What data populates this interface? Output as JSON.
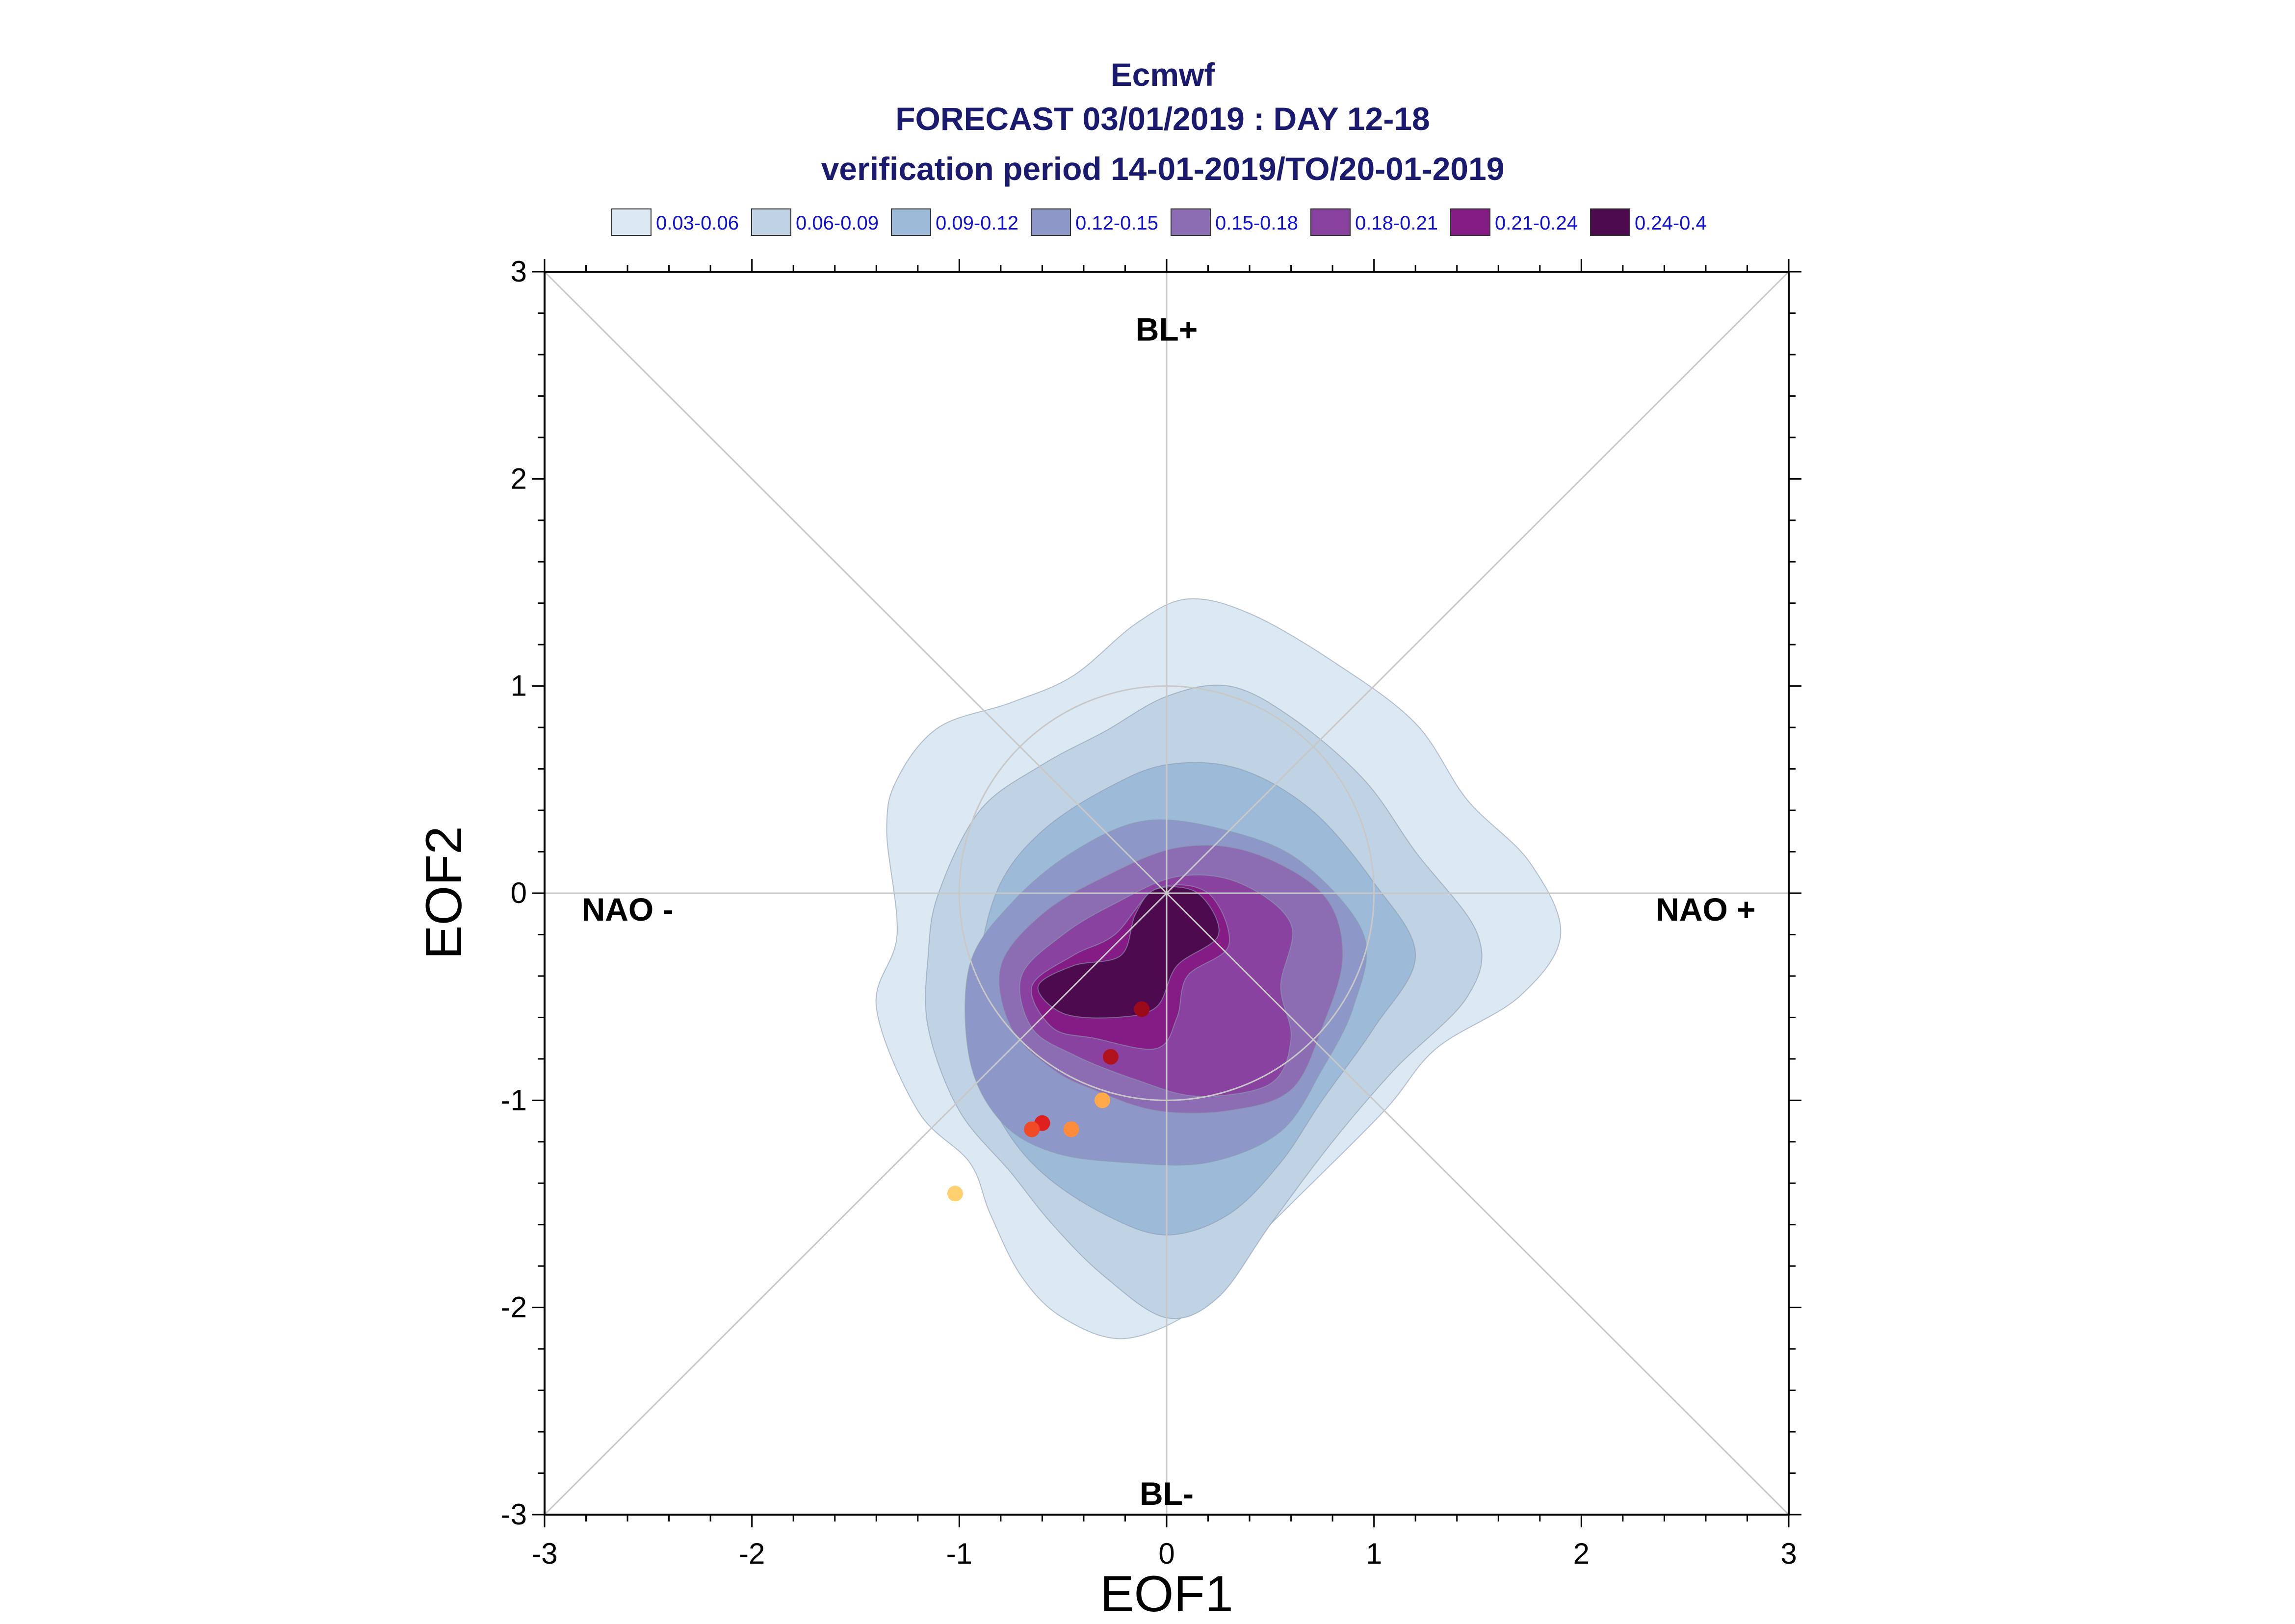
{
  "chart_data": {
    "type": "scatter",
    "title": "Ecmwf",
    "subtitle": "FORECAST 03/01/2019 : DAY 12-18",
    "subtitle2": "verification period 14-01-2019/TO/20-01-2019",
    "xlabel": "EOF1",
    "ylabel": "EOF2",
    "xlim": [
      -3,
      3
    ],
    "ylim": [
      -3,
      3
    ],
    "xticks": [
      -3,
      -2,
      -1,
      0,
      1,
      2,
      3
    ],
    "yticks": [
      -3,
      -2,
      -1,
      0,
      1,
      2,
      3
    ],
    "grid": false,
    "legend_placement": "top",
    "regime_labels": [
      {
        "text": "BL+",
        "x": 0,
        "y": 2.72
      },
      {
        "text": "BL-",
        "x": 0,
        "y": -2.9
      },
      {
        "text": "NAO -",
        "x": -2.6,
        "y": -0.08
      },
      {
        "text": "NAO +",
        "x": 2.6,
        "y": -0.08
      }
    ],
    "density_legend": [
      {
        "label": "0.03-0.06",
        "color": "#dde9f2"
      },
      {
        "label": "0.06-0.09",
        "color": "#bfd3e4"
      },
      {
        "label": "0.09-0.12",
        "color": "#9dbbd9"
      },
      {
        "label": "0.12-0.15",
        "color": "#8d97c8"
      },
      {
        "label": "0.15-0.18",
        "color": "#8c6db4"
      },
      {
        "label": "0.18-0.21",
        "color": "#8a42a0"
      },
      {
        "label": "0.21-0.24",
        "color": "#851b85"
      },
      {
        "label": "0.24-0.4",
        "color": "#4d0a4e"
      }
    ],
    "density_contours": [
      {
        "level": 0.03,
        "color": "#dde9f2",
        "points": [
          [
            -1.4,
            -0.55
          ],
          [
            -1.3,
            -0.2
          ],
          [
            -1.35,
            0.3
          ],
          [
            -1.3,
            0.55
          ],
          [
            -1.1,
            0.8
          ],
          [
            -0.75,
            0.92
          ],
          [
            -0.45,
            1.05
          ],
          [
            -0.15,
            1.3
          ],
          [
            0.1,
            1.42
          ],
          [
            0.4,
            1.35
          ],
          [
            0.8,
            1.12
          ],
          [
            1.2,
            0.82
          ],
          [
            1.45,
            0.45
          ],
          [
            1.75,
            0.15
          ],
          [
            1.9,
            -0.2
          ],
          [
            1.7,
            -0.5
          ],
          [
            1.3,
            -0.75
          ],
          [
            1.05,
            -1.05
          ],
          [
            0.6,
            -1.5
          ],
          [
            0.35,
            -1.75
          ],
          [
            0.15,
            -2.0
          ],
          [
            -0.2,
            -2.15
          ],
          [
            -0.5,
            -2.05
          ],
          [
            -0.7,
            -1.85
          ],
          [
            -0.85,
            -1.55
          ],
          [
            -0.95,
            -1.3
          ],
          [
            -1.2,
            -1.05
          ]
        ]
      },
      {
        "level": 0.06,
        "color": "#bfd3e4",
        "points": [
          [
            -1.15,
            -0.3
          ],
          [
            -1.1,
            0.0
          ],
          [
            -0.9,
            0.4
          ],
          [
            -0.6,
            0.62
          ],
          [
            -0.3,
            0.78
          ],
          [
            0.0,
            0.95
          ],
          [
            0.3,
            1.0
          ],
          [
            0.6,
            0.85
          ],
          [
            0.95,
            0.55
          ],
          [
            1.2,
            0.2
          ],
          [
            1.5,
            -0.2
          ],
          [
            1.45,
            -0.5
          ],
          [
            1.1,
            -0.85
          ],
          [
            0.8,
            -1.2
          ],
          [
            0.5,
            -1.6
          ],
          [
            0.25,
            -1.95
          ],
          [
            0.0,
            -2.05
          ],
          [
            -0.3,
            -1.85
          ],
          [
            -0.55,
            -1.6
          ],
          [
            -0.75,
            -1.35
          ],
          [
            -1.0,
            -1.05
          ],
          [
            -1.15,
            -0.65
          ]
        ]
      },
      {
        "level": 0.09,
        "color": "#9dbbd9",
        "points": [
          [
            -0.9,
            -0.3
          ],
          [
            -0.8,
            0.05
          ],
          [
            -0.6,
            0.3
          ],
          [
            -0.3,
            0.5
          ],
          [
            0.0,
            0.62
          ],
          [
            0.35,
            0.6
          ],
          [
            0.7,
            0.4
          ],
          [
            1.0,
            0.05
          ],
          [
            1.2,
            -0.3
          ],
          [
            1.0,
            -0.65
          ],
          [
            0.75,
            -1.0
          ],
          [
            0.55,
            -1.3
          ],
          [
            0.3,
            -1.55
          ],
          [
            0.0,
            -1.65
          ],
          [
            -0.3,
            -1.55
          ],
          [
            -0.6,
            -1.35
          ],
          [
            -0.8,
            -1.1
          ],
          [
            -0.95,
            -0.75
          ]
        ]
      },
      {
        "level": 0.12,
        "color": "#8d97c8",
        "points": [
          [
            -0.95,
            -0.35
          ],
          [
            -0.75,
            -0.05
          ],
          [
            -0.45,
            0.2
          ],
          [
            -0.1,
            0.35
          ],
          [
            0.3,
            0.3
          ],
          [
            0.65,
            0.15
          ],
          [
            0.95,
            -0.2
          ],
          [
            0.9,
            -0.55
          ],
          [
            0.75,
            -0.85
          ],
          [
            0.55,
            -1.15
          ],
          [
            0.2,
            -1.3
          ],
          [
            -0.2,
            -1.3
          ],
          [
            -0.55,
            -1.25
          ],
          [
            -0.8,
            -1.1
          ],
          [
            -0.95,
            -0.8
          ]
        ]
      },
      {
        "level": 0.15,
        "color": "#8c6db4",
        "points": [
          [
            -0.8,
            -0.35
          ],
          [
            -0.6,
            -0.1
          ],
          [
            -0.3,
            0.08
          ],
          [
            0.05,
            0.22
          ],
          [
            0.4,
            0.2
          ],
          [
            0.75,
            0.0
          ],
          [
            0.85,
            -0.3
          ],
          [
            0.75,
            -0.65
          ],
          [
            0.6,
            -0.95
          ],
          [
            0.3,
            -1.05
          ],
          [
            -0.05,
            -1.05
          ],
          [
            -0.35,
            -0.95
          ],
          [
            -0.55,
            -0.85
          ],
          [
            -0.75,
            -0.65
          ]
        ]
      },
      {
        "level": 0.18,
        "color": "#8a42a0",
        "points": [
          [
            -0.7,
            -0.4
          ],
          [
            -0.5,
            -0.2
          ],
          [
            -0.25,
            -0.05
          ],
          [
            0.05,
            0.08
          ],
          [
            0.35,
            0.05
          ],
          [
            0.6,
            -0.15
          ],
          [
            0.55,
            -0.45
          ],
          [
            0.6,
            -0.7
          ],
          [
            0.5,
            -0.92
          ],
          [
            0.15,
            -0.98
          ],
          [
            -0.15,
            -0.9
          ],
          [
            -0.45,
            -0.78
          ],
          [
            -0.65,
            -0.65
          ]
        ]
      },
      {
        "level": 0.21,
        "color": "#851b85",
        "points": [
          [
            -0.65,
            -0.45
          ],
          [
            -0.45,
            -0.3
          ],
          [
            -0.25,
            -0.2
          ],
          [
            -0.05,
            0.02
          ],
          [
            0.2,
            0.0
          ],
          [
            0.3,
            -0.25
          ],
          [
            0.1,
            -0.4
          ],
          [
            0.05,
            -0.6
          ],
          [
            -0.05,
            -0.75
          ],
          [
            -0.35,
            -0.7
          ],
          [
            -0.55,
            -0.65
          ]
        ]
      },
      {
        "level": 0.24,
        "color": "#4d0a4e",
        "points": [
          [
            -0.62,
            -0.45
          ],
          [
            -0.45,
            -0.35
          ],
          [
            -0.22,
            -0.3
          ],
          [
            -0.15,
            -0.1
          ],
          [
            -0.05,
            0.02
          ],
          [
            0.15,
            0.0
          ],
          [
            0.25,
            -0.2
          ],
          [
            0.05,
            -0.35
          ],
          [
            -0.05,
            -0.55
          ],
          [
            -0.25,
            -0.6
          ],
          [
            -0.5,
            -0.58
          ]
        ]
      }
    ],
    "points": [
      {
        "x": -0.12,
        "y": -0.56,
        "color": "#9a0a1a"
      },
      {
        "x": -0.27,
        "y": -0.79,
        "color": "#b0121e"
      },
      {
        "x": -0.31,
        "y": -1.0,
        "color": "#ffa94a"
      },
      {
        "x": -0.6,
        "y": -1.11,
        "color": "#e0201e"
      },
      {
        "x": -0.65,
        "y": -1.14,
        "color": "#f04a26"
      },
      {
        "x": -0.46,
        "y": -1.14,
        "color": "#ff8c3a"
      },
      {
        "x": -1.02,
        "y": -1.45,
        "color": "#ffd070"
      }
    ],
    "reference_circle_radius": 1.0
  }
}
